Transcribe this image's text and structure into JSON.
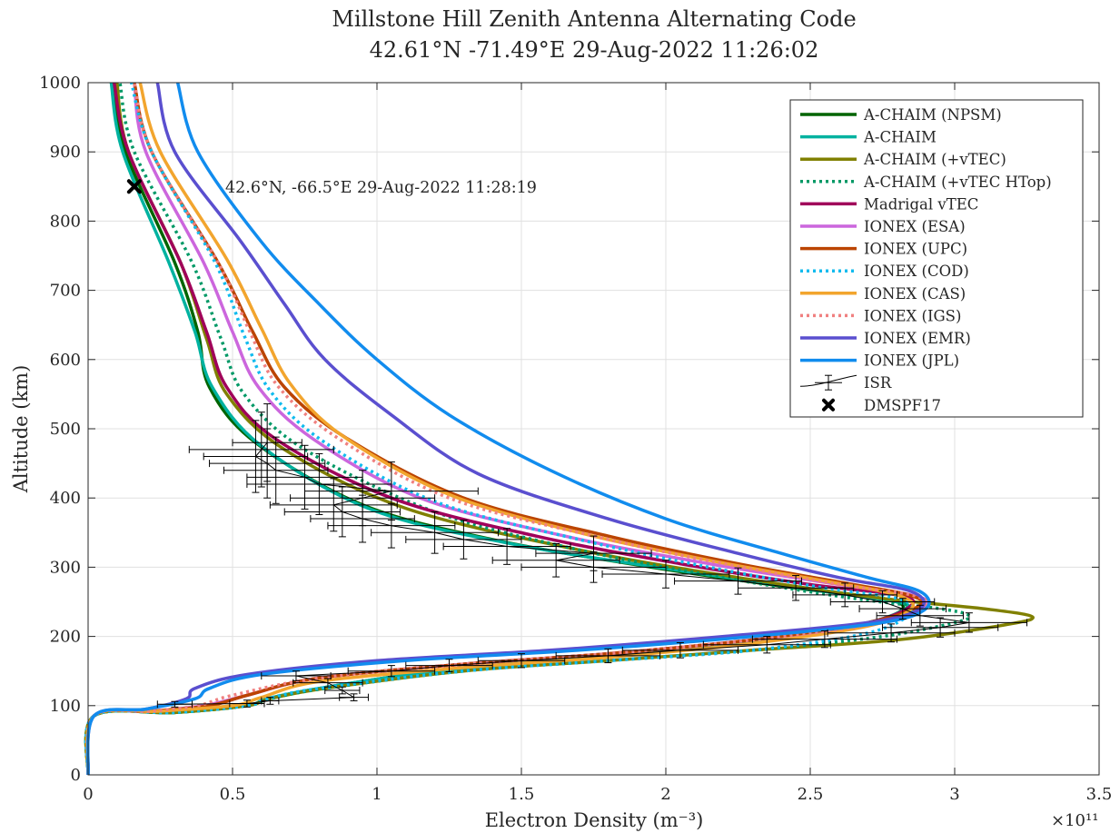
{
  "chart_data": {
    "type": "line",
    "title": "Millstone Hill Zenith Antenna Alternating Code",
    "subtitle": "42.61°N -71.49°E 29-Aug-2022 11:26:02",
    "xlabel": "Electron Density (m⁻³)",
    "ylabel": "Altitude (km)",
    "x_multiplier": "×10¹¹",
    "xlim": [
      0,
      3.5
    ],
    "ylim": [
      0,
      1000
    ],
    "xticks": [
      0,
      0.5,
      1,
      1.5,
      2,
      2.5,
      3,
      3.5
    ],
    "xtick_labels": [
      "0",
      "0.5",
      "1",
      "1.5",
      "2",
      "2.5",
      "3",
      "3.5"
    ],
    "yticks": [
      0,
      100,
      200,
      300,
      400,
      500,
      600,
      700,
      800,
      900,
      1000
    ],
    "ytick_labels": [
      "0",
      "100",
      "200",
      "300",
      "400",
      "500",
      "600",
      "700",
      "800",
      "900",
      "1000"
    ],
    "grid": true,
    "legend_position": "top-right",
    "annotation": "42.6°N, -66.5°E 29-Aug-2022 11:28:19",
    "series": [
      {
        "name": "A-CHAIM (NPSM)",
        "color": "#006400",
        "dash": "solid",
        "x": [
          0,
          0.02,
          0.3,
          0.55,
          0.62,
          0.8,
          1.2,
          1.6,
          2.0,
          2.4,
          2.7,
          2.82,
          2.75,
          2.45,
          1.95,
          1.4,
          0.95,
          0.58,
          0.42,
          0.38,
          0.3,
          0.13,
          0.09
        ],
        "y": [
          0,
          85,
          90,
          100,
          110,
          125,
          150,
          165,
          180,
          200,
          220,
          240,
          255,
          270,
          300,
          340,
          390,
          480,
          560,
          640,
          740,
          900,
          1000
        ]
      },
      {
        "name": "A-CHAIM",
        "color": "#00B2A0",
        "dash": "solid",
        "x": [
          0,
          0.02,
          0.3,
          0.55,
          0.62,
          0.8,
          1.2,
          1.6,
          2.0,
          2.4,
          2.7,
          2.83,
          2.8,
          2.55,
          2.05,
          1.45,
          0.97,
          0.6,
          0.43,
          0.37,
          0.28,
          0.12,
          0.08
        ],
        "y": [
          0,
          85,
          90,
          100,
          110,
          125,
          150,
          165,
          180,
          200,
          220,
          240,
          250,
          265,
          295,
          335,
          385,
          475,
          560,
          640,
          740,
          900,
          1000
        ]
      },
      {
        "name": "A-CHAIM (+vTEC)",
        "color": "#808000",
        "dash": "solid",
        "x": [
          0,
          0.02,
          0.3,
          0.55,
          0.63,
          0.82,
          1.3,
          1.8,
          2.3,
          2.8,
          3.15,
          3.27,
          3.1,
          2.75,
          2.25,
          1.7,
          1.1,
          0.68,
          0.48,
          0.41,
          0.32,
          0.14,
          0.1
        ],
        "y": [
          0,
          85,
          90,
          100,
          110,
          125,
          150,
          165,
          180,
          195,
          215,
          228,
          240,
          255,
          285,
          325,
          385,
          470,
          550,
          630,
          740,
          900,
          1000
        ]
      },
      {
        "name": "A-CHAIM (+vTEC HTop)",
        "color": "#009966",
        "dash": "dotted",
        "x": [
          0,
          0.02,
          0.3,
          0.55,
          0.63,
          0.82,
          1.3,
          1.8,
          2.3,
          2.75,
          3.0,
          3.05,
          2.95,
          2.65,
          2.2,
          1.7,
          1.2,
          0.75,
          0.54,
          0.46,
          0.36,
          0.16,
          0.11
        ],
        "y": [
          0,
          85,
          90,
          100,
          110,
          125,
          150,
          165,
          180,
          200,
          220,
          230,
          240,
          255,
          285,
          325,
          380,
          470,
          550,
          630,
          740,
          900,
          1000
        ]
      },
      {
        "name": "Madrigal vTEC",
        "color": "#A0005A",
        "dash": "solid",
        "x": [
          0,
          0.02,
          0.22,
          0.42,
          0.55,
          0.8,
          1.3,
          1.8,
          2.3,
          2.7,
          2.85,
          2.8,
          2.5,
          2.05,
          1.55,
          1.05,
          0.65,
          0.48,
          0.41,
          0.32,
          0.14,
          0.09
        ],
        "y": [
          0,
          85,
          92,
          100,
          115,
          140,
          160,
          175,
          195,
          220,
          245,
          260,
          275,
          305,
          345,
          400,
          485,
          560,
          640,
          740,
          900,
          1000
        ]
      },
      {
        "name": "IONEX (ESA)",
        "color": "#CC66DD",
        "dash": "solid",
        "x": [
          0,
          0.02,
          0.22,
          0.4,
          0.55,
          0.8,
          1.3,
          1.8,
          2.3,
          2.75,
          2.9,
          2.85,
          2.6,
          2.15,
          1.65,
          1.15,
          0.78,
          0.59,
          0.5,
          0.4,
          0.2,
          0.16
        ],
        "y": [
          0,
          85,
          92,
          100,
          115,
          140,
          160,
          175,
          195,
          220,
          245,
          260,
          275,
          305,
          345,
          400,
          485,
          560,
          640,
          740,
          900,
          1000
        ]
      },
      {
        "name": "IONEX (UPC)",
        "color": "#BB4400",
        "dash": "solid",
        "x": [
          0,
          0.02,
          0.22,
          0.42,
          0.55,
          0.8,
          1.3,
          1.8,
          2.3,
          2.7,
          2.88,
          2.84,
          2.65,
          2.25,
          1.8,
          1.3,
          0.9,
          0.68,
          0.57,
          0.45,
          0.22,
          0.16
        ],
        "y": [
          0,
          85,
          92,
          100,
          115,
          140,
          160,
          175,
          195,
          220,
          245,
          260,
          275,
          305,
          345,
          400,
          485,
          560,
          640,
          740,
          900,
          1000
        ]
      },
      {
        "name": "IONEX (COD)",
        "color": "#11BBEE",
        "dash": "dotted",
        "x": [
          0,
          0.02,
          0.3,
          0.55,
          0.62,
          0.8,
          1.3,
          1.8,
          2.3,
          2.7,
          2.85,
          2.8,
          2.55,
          2.15,
          1.7,
          1.2,
          0.82,
          0.63,
          0.54,
          0.44,
          0.22,
          0.15
        ],
        "y": [
          0,
          85,
          90,
          100,
          110,
          125,
          150,
          165,
          180,
          205,
          235,
          255,
          270,
          300,
          340,
          395,
          480,
          555,
          635,
          740,
          900,
          1000
        ]
      },
      {
        "name": "IONEX (CAS)",
        "color": "#F2A52E",
        "dash": "solid",
        "x": [
          0,
          0.02,
          0.25,
          0.5,
          0.6,
          0.8,
          1.3,
          1.8,
          2.3,
          2.7,
          2.85,
          2.8,
          2.55,
          2.15,
          1.7,
          1.25,
          0.88,
          0.7,
          0.6,
          0.48,
          0.25,
          0.18
        ],
        "y": [
          0,
          85,
          92,
          100,
          112,
          135,
          155,
          170,
          190,
          215,
          240,
          260,
          280,
          310,
          350,
          405,
          490,
          565,
          645,
          745,
          900,
          1000
        ]
      },
      {
        "name": "IONEX (IGS)",
        "color": "#F08080",
        "dash": "dotted",
        "x": [
          0,
          0.02,
          0.22,
          0.38,
          0.5,
          0.8,
          1.3,
          1.8,
          2.3,
          2.75,
          2.9,
          2.85,
          2.6,
          2.2,
          1.75,
          1.25,
          0.87,
          0.66,
          0.56,
          0.45,
          0.22,
          0.16
        ],
        "y": [
          0,
          85,
          92,
          100,
          115,
          140,
          160,
          175,
          195,
          220,
          245,
          260,
          275,
          305,
          345,
          400,
          485,
          560,
          640,
          740,
          900,
          1000
        ]
      },
      {
        "name": "IONEX (EMR)",
        "color": "#5A4FCF",
        "dash": "solid",
        "x": [
          0,
          0.02,
          0.2,
          0.34,
          0.37,
          0.55,
          1.0,
          1.6,
          2.2,
          2.7,
          2.88,
          2.85,
          2.6,
          2.25,
          1.8,
          1.35,
          1.05,
          0.82,
          0.68,
          0.53,
          0.3,
          0.24
        ],
        "y": [
          0,
          85,
          95,
          110,
          125,
          145,
          165,
          180,
          200,
          220,
          240,
          265,
          285,
          320,
          370,
          435,
          520,
          600,
          680,
          770,
          900,
          1000
        ]
      },
      {
        "name": "IONEX (JPL)",
        "color": "#118CEE",
        "dash": "solid",
        "x": [
          0,
          0.02,
          0.2,
          0.37,
          0.42,
          0.6,
          1.1,
          1.7,
          2.3,
          2.75,
          2.9,
          2.88,
          2.7,
          2.4,
          2.0,
          1.6,
          1.25,
          1.0,
          0.8,
          0.6,
          0.38,
          0.31
        ],
        "y": [
          0,
          85,
          95,
          110,
          125,
          145,
          165,
          180,
          200,
          220,
          240,
          265,
          285,
          320,
          370,
          440,
          520,
          600,
          680,
          770,
          900,
          1000
        ]
      }
    ],
    "isr": {
      "name": "ISR",
      "color": "#000000",
      "points": [
        {
          "x": 0.3,
          "y": 102,
          "dx": 0.06,
          "dy": 4
        },
        {
          "x": 0.55,
          "y": 103,
          "dx": 0.06,
          "dy": 5
        },
        {
          "x": 0.63,
          "y": 107,
          "dx": 0.03,
          "dy": 5
        },
        {
          "x": 0.92,
          "y": 112,
          "dx": 0.05,
          "dy": 5
        },
        {
          "x": 0.88,
          "y": 122,
          "dx": 0.06,
          "dy": 5
        },
        {
          "x": 0.83,
          "y": 133,
          "dx": 0.12,
          "dy": 6
        },
        {
          "x": 0.72,
          "y": 143,
          "dx": 0.12,
          "dy": 7
        },
        {
          "x": 1.05,
          "y": 150,
          "dx": 0.15,
          "dy": 8
        },
        {
          "x": 1.25,
          "y": 158,
          "dx": 0.15,
          "dy": 9
        },
        {
          "x": 1.5,
          "y": 165,
          "dx": 0.15,
          "dy": 10
        },
        {
          "x": 1.8,
          "y": 172,
          "dx": 0.18,
          "dy": 10
        },
        {
          "x": 2.05,
          "y": 180,
          "dx": 0.2,
          "dy": 11
        },
        {
          "x": 2.35,
          "y": 188,
          "dx": 0.22,
          "dy": 12
        },
        {
          "x": 2.55,
          "y": 196,
          "dx": 0.25,
          "dy": 12
        },
        {
          "x": 2.78,
          "y": 205,
          "dx": 0.22,
          "dy": 13
        },
        {
          "x": 2.95,
          "y": 213,
          "dx": 0.2,
          "dy": 14
        },
        {
          "x": 3.05,
          "y": 220,
          "dx": 0.2,
          "dy": 14
        },
        {
          "x": 2.88,
          "y": 230,
          "dx": 0.15,
          "dy": 15
        },
        {
          "x": 2.82,
          "y": 240,
          "dx": 0.15,
          "dy": 15
        },
        {
          "x": 2.75,
          "y": 250,
          "dx": 0.18,
          "dy": 16
        },
        {
          "x": 2.62,
          "y": 260,
          "dx": 0.18,
          "dy": 17
        },
        {
          "x": 2.45,
          "y": 270,
          "dx": 0.2,
          "dy": 18
        },
        {
          "x": 2.25,
          "y": 280,
          "dx": 0.22,
          "dy": 19
        },
        {
          "x": 2.0,
          "y": 290,
          "dx": 0.22,
          "dy": 20
        },
        {
          "x": 1.75,
          "y": 300,
          "dx": 0.25,
          "dy": 22
        },
        {
          "x": 1.62,
          "y": 310,
          "dx": 0.22,
          "dy": 24
        },
        {
          "x": 1.75,
          "y": 320,
          "dx": 0.2,
          "dy": 25
        },
        {
          "x": 1.45,
          "y": 330,
          "dx": 0.22,
          "dy": 26
        },
        {
          "x": 1.3,
          "y": 340,
          "dx": 0.2,
          "dy": 28
        },
        {
          "x": 1.2,
          "y": 350,
          "dx": 0.22,
          "dy": 30
        },
        {
          "x": 1.05,
          "y": 360,
          "dx": 0.22,
          "dy": 32
        },
        {
          "x": 0.95,
          "y": 370,
          "dx": 0.18,
          "dy": 34
        },
        {
          "x": 0.88,
          "y": 380,
          "dx": 0.2,
          "dy": 36
        },
        {
          "x": 0.85,
          "y": 390,
          "dx": 0.22,
          "dy": 38
        },
        {
          "x": 0.95,
          "y": 400,
          "dx": 0.25,
          "dy": 40
        },
        {
          "x": 1.05,
          "y": 410,
          "dx": 0.3,
          "dy": 42
        },
        {
          "x": 0.8,
          "y": 420,
          "dx": 0.25,
          "dy": 44
        },
        {
          "x": 0.75,
          "y": 430,
          "dx": 0.2,
          "dy": 46
        },
        {
          "x": 0.65,
          "y": 440,
          "dx": 0.18,
          "dy": 48
        },
        {
          "x": 0.62,
          "y": 450,
          "dx": 0.2,
          "dy": 50
        },
        {
          "x": 0.58,
          "y": 460,
          "dx": 0.18,
          "dy": 52
        },
        {
          "x": 0.6,
          "y": 470,
          "dx": 0.25,
          "dy": 54
        },
        {
          "x": 0.62,
          "y": 480,
          "dx": 0.12,
          "dy": 56
        }
      ]
    },
    "dmsp": {
      "name": "DMSPF17",
      "x": 0.16,
      "y": 850,
      "color": "#000000"
    }
  }
}
